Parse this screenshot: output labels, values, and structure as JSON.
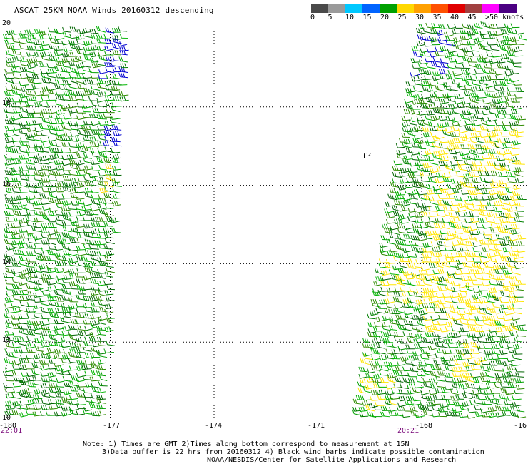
{
  "title": "ASCAT 25KM NOAA Winds 20160312 descending",
  "legend": {
    "unit": "knots",
    "labels": [
      "0",
      "5",
      "10",
      "15",
      "20",
      "25",
      "30",
      "35",
      "40",
      "45",
      ">50 knots"
    ],
    "colors": [
      "#4a4a4a",
      "#9a9a9a",
      "#00c8ff",
      "#0064ff",
      "#00a000",
      "#ffd800",
      "#ffa000",
      "#ff5000",
      "#e00000",
      "#a04040",
      "#ff00ff",
      "#4b0082"
    ]
  },
  "axes": {
    "lat_labels": [
      "20",
      "18",
      "16",
      "14",
      "12",
      "10"
    ],
    "lon_labels": [
      "-180",
      "-177",
      "-174",
      "-171",
      "-168",
      "-16"
    ]
  },
  "map_label": "£²",
  "pass_times": [
    "22:01",
    "20:21"
  ],
  "notes": {
    "line1": "Note: 1) Times are GMT 2)Times along bottom correspond to measurement at 15N",
    "line2": "3)Data buffer is 22 hrs from 20160312 4) Black wind barbs indicate possible contamination",
    "line3": "NOAA/NESDIS/Center for Satellite Applications and Research"
  },
  "swaths": [
    {
      "region": "west",
      "lon_range": [
        -180,
        -177.2
      ]
    },
    {
      "region": "east",
      "lon_range": [
        -169.2,
        -164
      ]
    }
  ]
}
